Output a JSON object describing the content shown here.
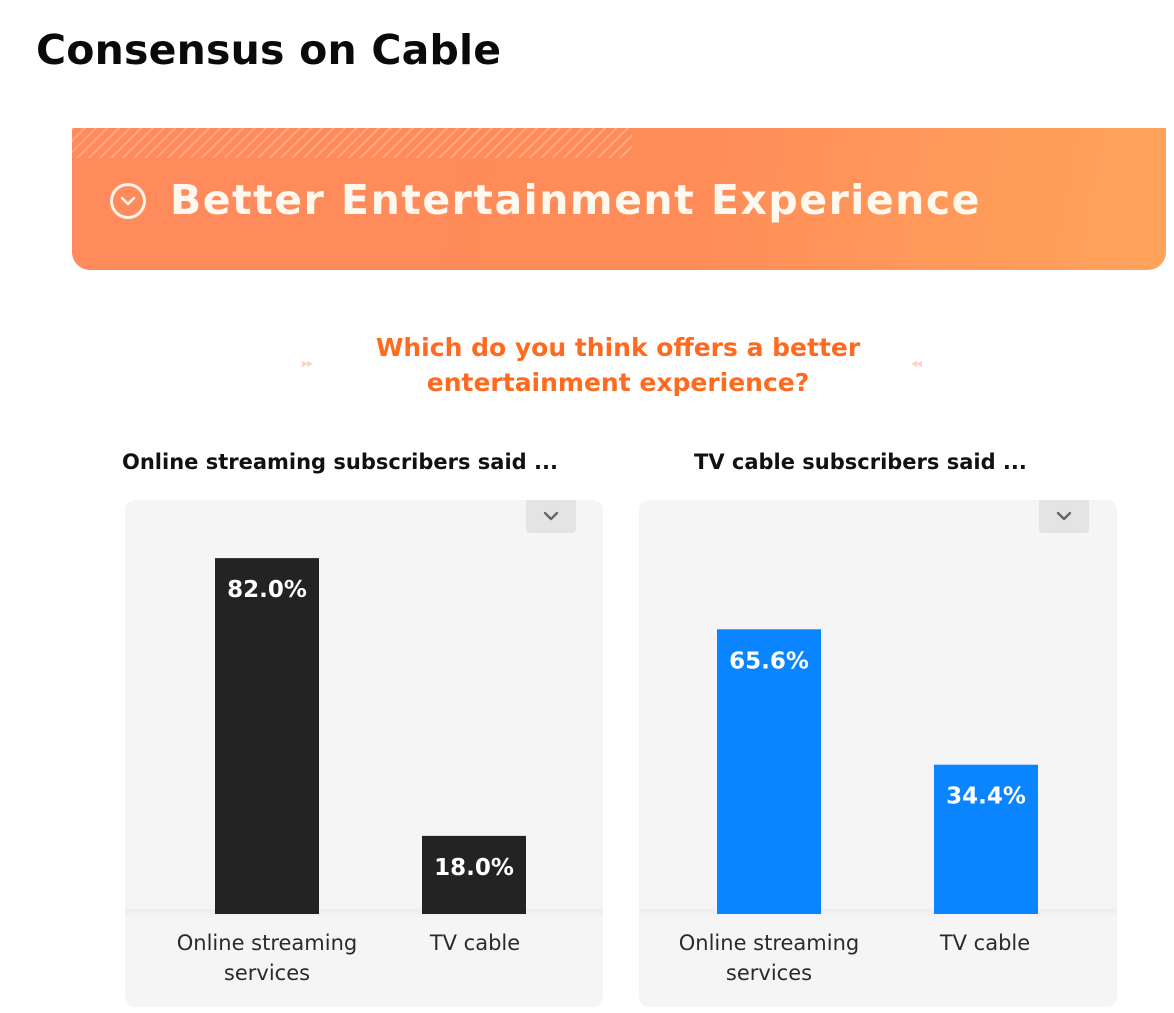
{
  "page": {
    "title": "Consensus on Cable",
    "banner_title": "Better Entertainment Experience",
    "question": "Which do you think offers a better entertainment experience?",
    "deco_left": "▸▸",
    "deco_right": "◂◂"
  },
  "icons": {
    "banner": "chevron-down-circle-icon",
    "chart_menu": "chevron-down-icon"
  },
  "colors": {
    "banner": "#ff8b58",
    "question": "#ff6a1f",
    "streaming_bars": "#232323",
    "cable_bars": "#0a84ff"
  },
  "chart_data": [
    {
      "type": "bar",
      "title": "Online streaming subscribers said ...",
      "categories": [
        "Online streaming services",
        "TV cable"
      ],
      "values": [
        82.0,
        18.0
      ],
      "labels": [
        "82.0%",
        "18.0%"
      ],
      "ylim": [
        0,
        100
      ],
      "color": "#232323",
      "grid": false,
      "legend": "none"
    },
    {
      "type": "bar",
      "title": "TV cable subscribers said ...",
      "categories": [
        "Online streaming services",
        "TV cable"
      ],
      "values": [
        65.6,
        34.4
      ],
      "labels": [
        "65.6%",
        "34.4%"
      ],
      "ylim": [
        0,
        100
      ],
      "color": "#0a84ff",
      "grid": false,
      "legend": "none"
    }
  ]
}
